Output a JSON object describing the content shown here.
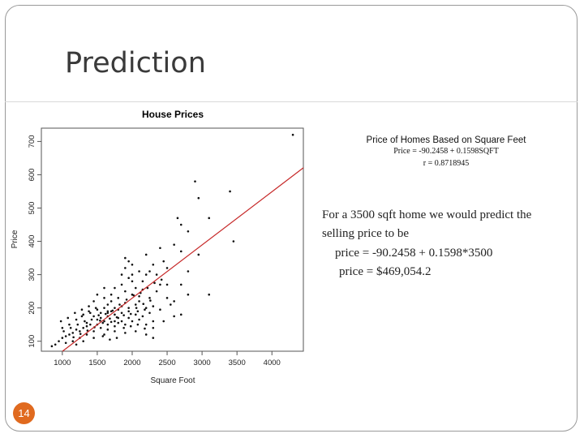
{
  "slide": {
    "title": "Prediction",
    "page_number": "14"
  },
  "right_panel": {
    "heading": "Price of Homes Based on Square Feet",
    "equation": "Price = -90.2458 + 0.1598SQFT",
    "correlation": "r = 0.8718945",
    "lines": [
      "For a 3500 sqft home we would predict the",
      "selling price to be",
      "price = -90.2458 + 0.1598*3500",
      "price = $469,054.2"
    ]
  },
  "colors": {
    "regression_line": "#c62828",
    "badge": "#e06a1f"
  },
  "chart_data": {
    "type": "scatter",
    "title": "House Prices",
    "xlabel": "Square Foot",
    "ylabel": "Price",
    "xlim": [
      700,
      4450
    ],
    "ylim": [
      70,
      740
    ],
    "xticks": [
      1000,
      1500,
      2000,
      2500,
      3000,
      3500,
      4000
    ],
    "yticks": [
      100,
      200,
      300,
      400,
      500,
      600,
      700
    ],
    "grid": false,
    "regression": {
      "intercept": -90.2458,
      "slope": 0.1598
    },
    "series": [
      {
        "points": [
          [
            4300,
            720
          ],
          [
            2900,
            580
          ],
          [
            2950,
            530
          ],
          [
            3400,
            550
          ],
          [
            3100,
            470
          ],
          [
            2650,
            470
          ],
          [
            2700,
            450
          ],
          [
            2800,
            430
          ],
          [
            3450,
            400
          ],
          [
            2600,
            390
          ],
          [
            2700,
            370
          ],
          [
            2400,
            380
          ],
          [
            2450,
            340
          ],
          [
            2500,
            320
          ],
          [
            2300,
            330
          ],
          [
            2250,
            310
          ],
          [
            2350,
            300
          ],
          [
            2500,
            270
          ],
          [
            2700,
            270
          ],
          [
            2800,
            240
          ],
          [
            3100,
            240
          ],
          [
            2500,
            230
          ],
          [
            2600,
            220
          ],
          [
            2700,
            180
          ],
          [
            2600,
            175
          ],
          [
            2450,
            160
          ],
          [
            2000,
            330
          ],
          [
            1900,
            320
          ],
          [
            2100,
            310
          ],
          [
            2200,
            300
          ],
          [
            2000,
            280
          ],
          [
            1950,
            290
          ],
          [
            1850,
            270
          ],
          [
            1750,
            260
          ],
          [
            2050,
            260
          ],
          [
            2150,
            255
          ],
          [
            1900,
            250
          ],
          [
            2000,
            240
          ],
          [
            2100,
            235
          ],
          [
            1800,
            230
          ],
          [
            1700,
            220
          ],
          [
            1650,
            210
          ],
          [
            1900,
            215
          ],
          [
            2050,
            210
          ],
          [
            2200,
            200
          ],
          [
            2300,
            205
          ],
          [
            2400,
            195
          ],
          [
            1950,
            190
          ],
          [
            1850,
            185
          ],
          [
            1750,
            180
          ],
          [
            1650,
            175
          ],
          [
            1550,
            170
          ],
          [
            1500,
            165
          ],
          [
            1450,
            175
          ],
          [
            1600,
            160
          ],
          [
            1700,
            158
          ],
          [
            1800,
            155
          ],
          [
            1900,
            150
          ],
          [
            2000,
            160
          ],
          [
            2100,
            165
          ],
          [
            2200,
            150
          ],
          [
            2300,
            140
          ],
          [
            1400,
            150
          ],
          [
            1350,
            145
          ],
          [
            1300,
            140
          ],
          [
            1250,
            130
          ],
          [
            1200,
            135
          ],
          [
            1150,
            125
          ],
          [
            1100,
            120
          ],
          [
            1050,
            115
          ],
          [
            1000,
            110
          ],
          [
            950,
            100
          ],
          [
            900,
            90
          ],
          [
            850,
            85
          ],
          [
            1250,
            110
          ],
          [
            1350,
            120
          ],
          [
            1450,
            130
          ],
          [
            1550,
            140
          ],
          [
            1650,
            150
          ],
          [
            1750,
            145
          ],
          [
            1850,
            160
          ],
          [
            1950,
            170
          ],
          [
            2050,
            180
          ],
          [
            2150,
            175
          ],
          [
            2250,
            185
          ],
          [
            1500,
            195
          ],
          [
            1600,
            200
          ],
          [
            1700,
            190
          ],
          [
            1800,
            195
          ],
          [
            1550,
            185
          ],
          [
            1650,
            185
          ],
          [
            1750,
            200
          ],
          [
            1850,
            205
          ],
          [
            1400,
            185
          ],
          [
            1300,
            180
          ],
          [
            1200,
            165
          ],
          [
            1100,
            150
          ],
          [
            1000,
            140
          ],
          [
            1150,
            100
          ],
          [
            1300,
            100
          ],
          [
            1450,
            110
          ],
          [
            1600,
            120
          ],
          [
            1750,
            130
          ],
          [
            1900,
            125
          ],
          [
            2050,
            130
          ],
          [
            2200,
            120
          ],
          [
            2300,
            110
          ],
          [
            1050,
            95
          ],
          [
            1200,
            90
          ],
          [
            1350,
            155
          ],
          [
            1500,
            150
          ],
          [
            1650,
            135
          ],
          [
            1800,
            170
          ],
          [
            1950,
            200
          ],
          [
            2100,
            220
          ],
          [
            2250,
            230
          ],
          [
            2350,
            250
          ],
          [
            1600,
            230
          ],
          [
            1700,
            240
          ],
          [
            1500,
            240
          ],
          [
            1450,
            220
          ],
          [
            1380,
            205
          ],
          [
            1280,
            195
          ],
          [
            1180,
            185
          ],
          [
            1080,
            170
          ],
          [
            980,
            160
          ],
          [
            1020,
            130
          ],
          [
            1120,
            140
          ],
          [
            1220,
            150
          ],
          [
            1320,
            160
          ],
          [
            1420,
            165
          ],
          [
            1520,
            178
          ],
          [
            1620,
            182
          ],
          [
            1720,
            192
          ],
          [
            1820,
            210
          ],
          [
            1920,
            225
          ],
          [
            2020,
            238
          ],
          [
            2120,
            245
          ],
          [
            2220,
            260
          ],
          [
            2320,
            275
          ],
          [
            2420,
            285
          ],
          [
            1580,
            155
          ],
          [
            1680,
            168
          ],
          [
            1780,
            172
          ],
          [
            1880,
            178
          ],
          [
            1980,
            182
          ],
          [
            2080,
            190
          ],
          [
            2180,
            195
          ],
          [
            1480,
            200
          ],
          [
            1380,
            190
          ],
          [
            1280,
            175
          ],
          [
            1880,
            140
          ],
          [
            1980,
            145
          ],
          [
            2080,
            150
          ],
          [
            2180,
            138
          ],
          [
            1780,
            110
          ],
          [
            1680,
            105
          ],
          [
            1580,
            115
          ],
          [
            2950,
            360
          ],
          [
            2200,
            360
          ],
          [
            1900,
            350
          ],
          [
            2400,
            270
          ],
          [
            1600,
            260
          ],
          [
            2000,
            300
          ],
          [
            1850,
            300
          ],
          [
            2150,
            280
          ],
          [
            2800,
            310
          ],
          [
            1950,
            340
          ],
          [
            2300,
            160
          ],
          [
            2550,
            210
          ],
          [
            1750,
            160
          ],
          [
            1650,
            190
          ],
          [
            1540,
            162
          ],
          [
            1460,
            142
          ],
          [
            1360,
            132
          ],
          [
            1260,
            122
          ],
          [
            1160,
            112
          ],
          [
            2060,
            200
          ],
          [
            2160,
            212
          ],
          [
            2260,
            222
          ]
        ]
      }
    ]
  }
}
